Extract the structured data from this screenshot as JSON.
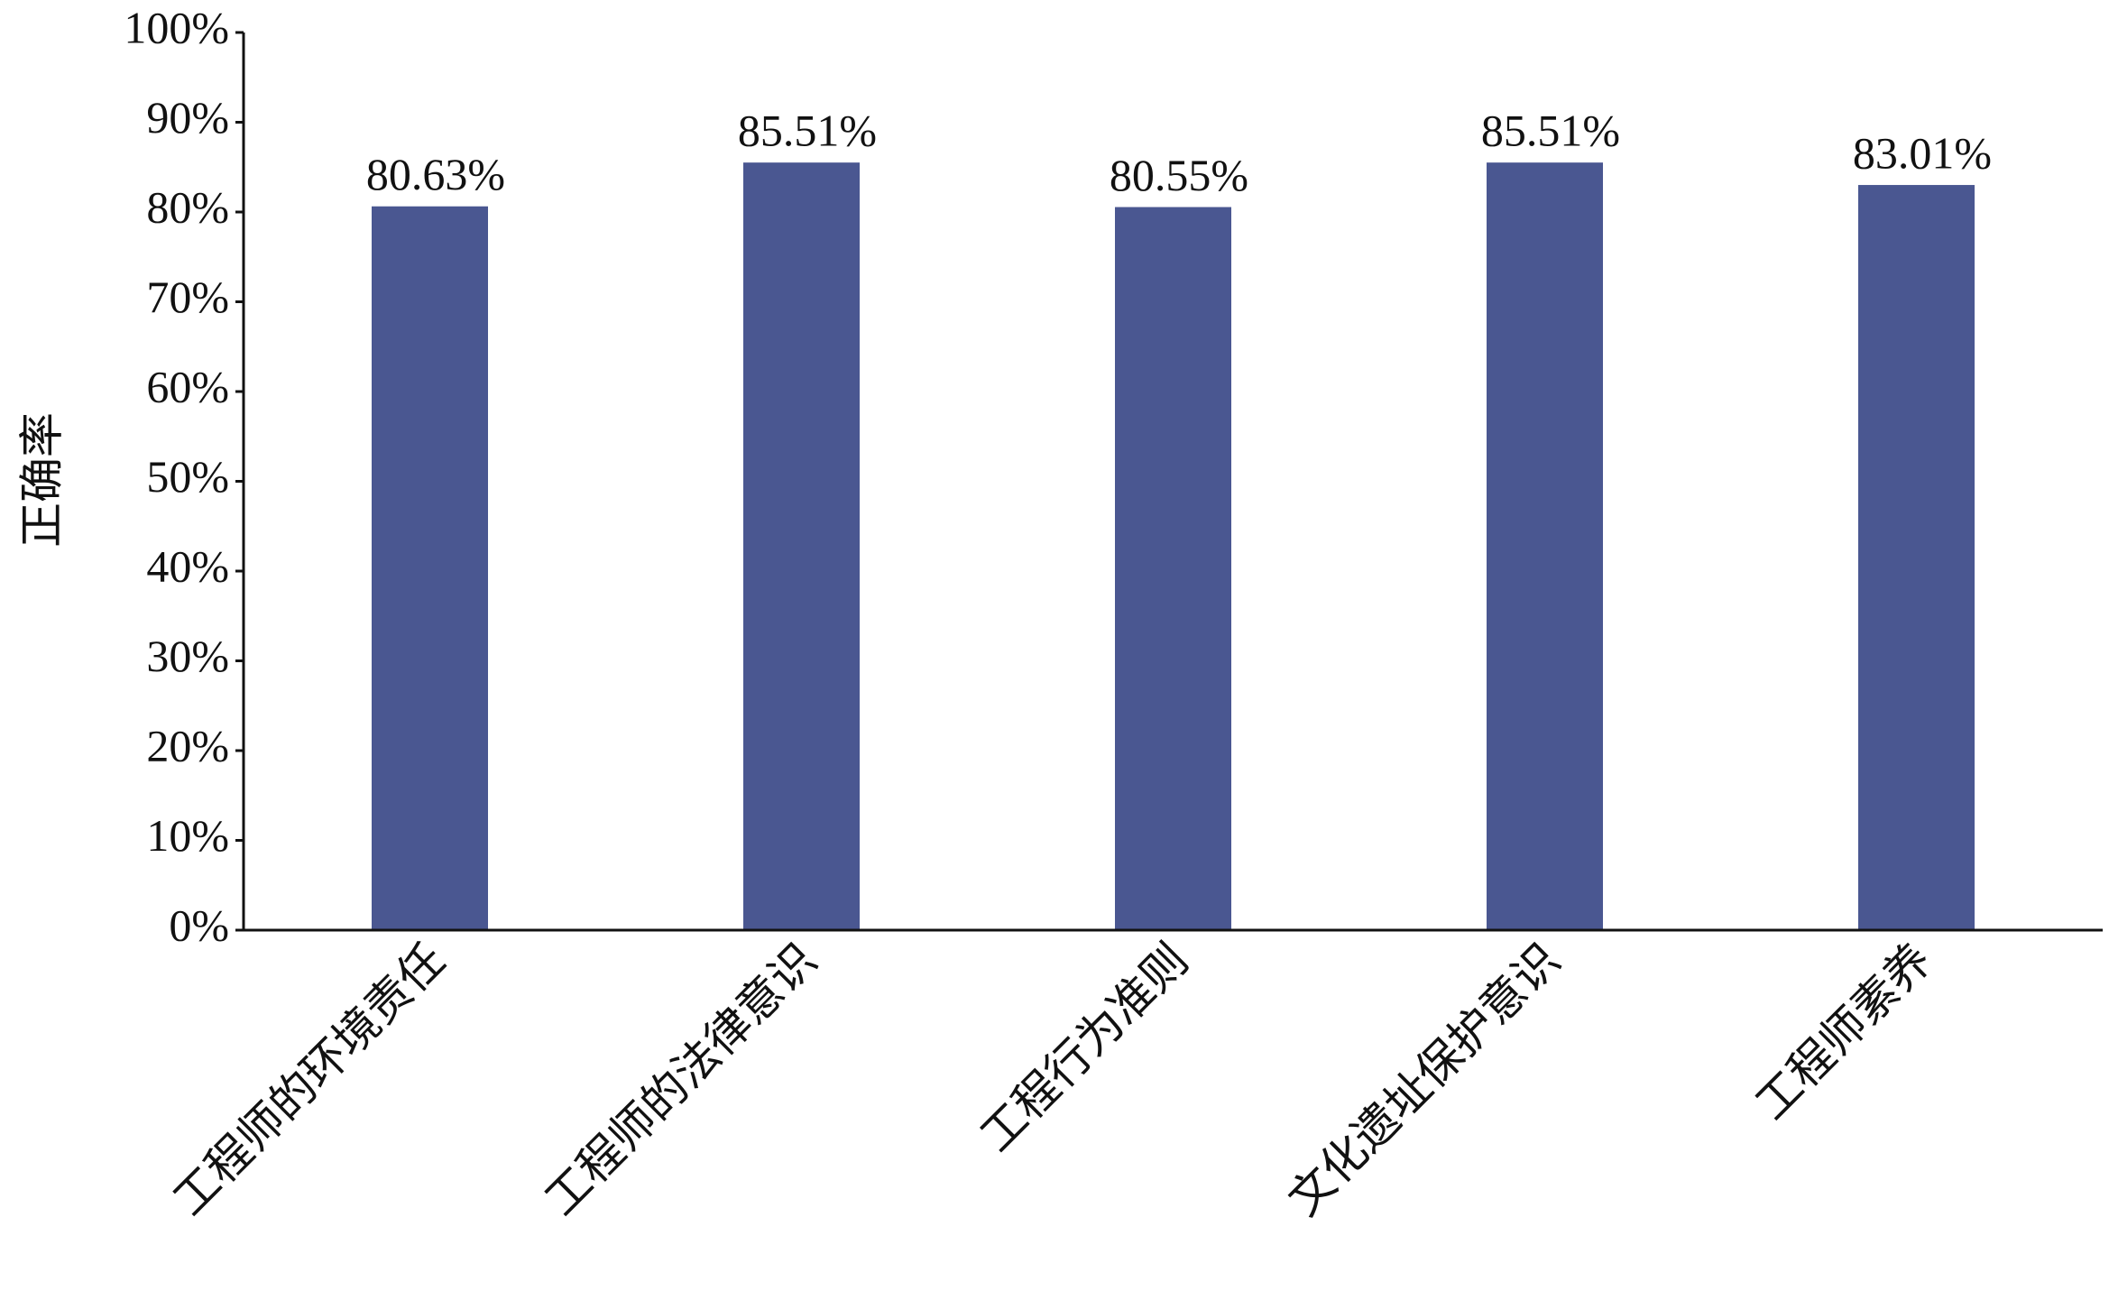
{
  "chart_data": {
    "type": "bar",
    "y_label": "正确率",
    "categories": [
      "工程师的环境责任",
      "工程师的法律意识",
      "工程行为准则",
      "文化遗址保护意识",
      "工程师素养"
    ],
    "values": [
      80.63,
      85.51,
      80.55,
      85.51,
      83.01
    ],
    "value_labels": [
      "80.63%",
      "85.51%",
      "80.55%",
      "85.51%",
      "83.01%"
    ],
    "color": "#4a5791",
    "ylim": [
      0,
      100
    ],
    "yticks": [
      {
        "value": 0,
        "label": "0%"
      },
      {
        "value": 10,
        "label": "10%"
      },
      {
        "value": 20,
        "label": "20%"
      },
      {
        "value": 30,
        "label": "30%"
      },
      {
        "value": 40,
        "label": "40%"
      },
      {
        "value": 50,
        "label": "50%"
      },
      {
        "value": 60,
        "label": "60%"
      },
      {
        "value": 70,
        "label": "70%"
      },
      {
        "value": 80,
        "label": "80%"
      },
      {
        "value": 90,
        "label": "90%"
      },
      {
        "value": 100,
        "label": "100%"
      }
    ],
    "grid": false
  }
}
